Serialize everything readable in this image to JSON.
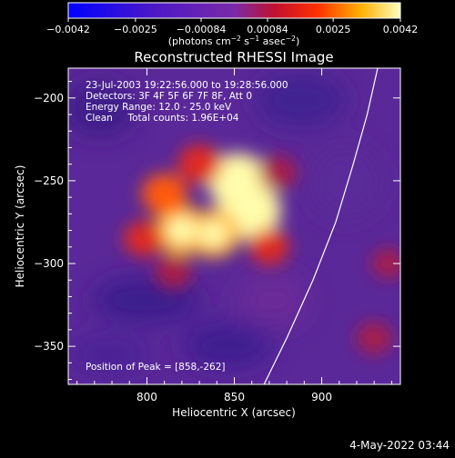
{
  "chart_data": {
    "type": "heatmap",
    "title": "Reconstructed RHESSI Image",
    "xlabel": "Heliocentric X (arcsec)",
    "ylabel": "Heliocentric Y (arcsec)",
    "xlim": [
      755,
      945
    ],
    "ylim": [
      -373,
      -182
    ],
    "x_ticks": [
      800,
      850,
      900
    ],
    "x_tick_labels": [
      "800",
      "850",
      "900"
    ],
    "y_ticks": [
      -200,
      -250,
      -300,
      -350
    ],
    "y_tick_labels": [
      "−200",
      "−250",
      "−300",
      "−350"
    ],
    "colorbar": {
      "range": [
        -0.0042,
        0.0042
      ],
      "tick_values": [
        -0.0042,
        -0.0025,
        -0.00084,
        0.00084,
        0.0025,
        0.0042
      ],
      "tick_labels": [
        "−0.0042",
        "−0.0025",
        "−0.00084",
        "0.00084",
        "0.0025",
        "0.0042"
      ],
      "unit_label_parts": [
        "(photons cm",
        "−2",
        " s",
        "−1",
        " asec",
        "−2",
        ")"
      ]
    },
    "colors": {
      "negative": "#0000ff",
      "mid": "#6a2aa8",
      "positive_low": "#c01020",
      "positive_mid": "#ff6000",
      "positive_high": "#ffff80"
    },
    "info_lines": [
      "23-Jul-2003 19:22:56.000 to 19:28:56.000",
      "Detectors: 3F 4F 5F 6F 7F 8F, Att 0",
      "Energy Range: 12.0 - 25.0 keV",
      "Clean     Total counts: 1.96E+04"
    ],
    "peak_label": "Position of Peak = [858,-262]",
    "peak": [
      858,
      -262
    ],
    "limb_curve": [
      [
        867,
        -373
      ],
      [
        880,
        -345
      ],
      [
        895,
        -310
      ],
      [
        908,
        -275
      ],
      [
        918,
        -240
      ],
      [
        926,
        -210
      ],
      [
        932,
        -182
      ]
    ],
    "sources": [
      {
        "x": 858,
        "y": -268,
        "level": 1.0
      },
      {
        "x": 852,
        "y": -250,
        "level": 0.9
      },
      {
        "x": 820,
        "y": -280,
        "level": 0.75
      },
      {
        "x": 838,
        "y": -282,
        "level": 0.7
      },
      {
        "x": 810,
        "y": -258,
        "level": 0.5
      },
      {
        "x": 830,
        "y": -240,
        "level": 0.45
      },
      {
        "x": 798,
        "y": -285,
        "level": 0.35
      },
      {
        "x": 870,
        "y": -290,
        "level": 0.35
      },
      {
        "x": 815,
        "y": -305,
        "level": 0.3
      },
      {
        "x": 875,
        "y": -245,
        "level": 0.3
      },
      {
        "x": 930,
        "y": -345,
        "level": 0.25
      },
      {
        "x": 938,
        "y": -300,
        "level": 0.18
      }
    ]
  },
  "timestamp": "4-May-2022 03:44"
}
